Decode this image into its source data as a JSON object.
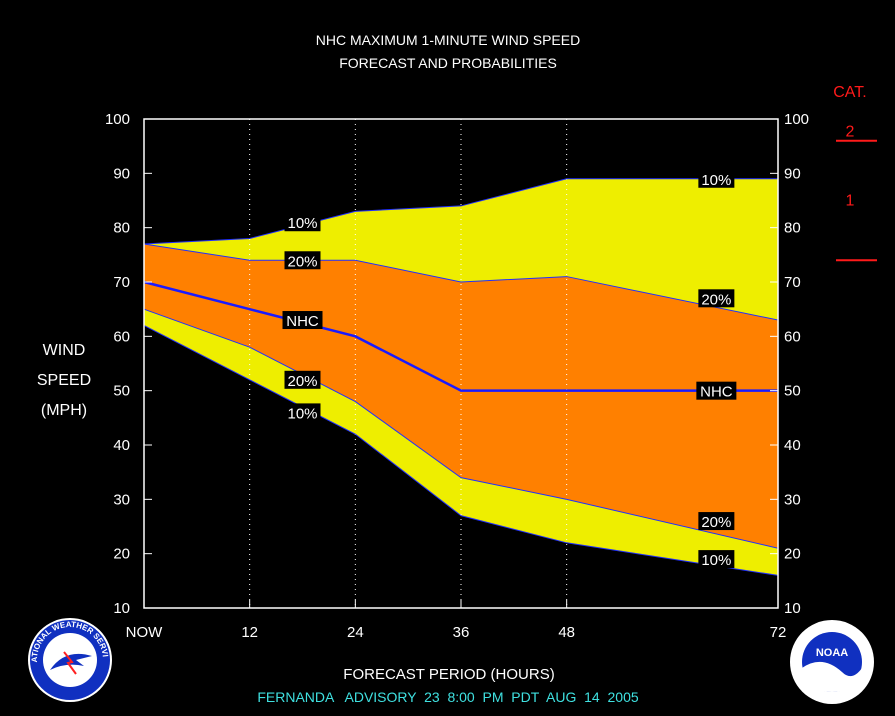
{
  "chart_data": {
    "type": "area",
    "title": "NHC MAXIMUM 1-MINUTE WIND SPEED",
    "subtitle": "FORECAST AND PROBABILITIES",
    "ylabel": [
      "WIND",
      "SPEED",
      "(MPH)"
    ],
    "xlabel": "FORECAST PERIOD (HOURS)",
    "ylim": [
      10,
      100
    ],
    "xlim": [
      0,
      72
    ],
    "yticks": [
      10,
      20,
      30,
      40,
      50,
      60,
      70,
      80,
      90,
      100
    ],
    "xticks": [
      {
        "value": 0,
        "label": "NOW"
      },
      {
        "value": 12,
        "label": "12"
      },
      {
        "value": 24,
        "label": "24"
      },
      {
        "value": 36,
        "label": "36"
      },
      {
        "value": 48,
        "label": "48"
      },
      {
        "value": 72,
        "label": "72"
      }
    ],
    "x": [
      0,
      12,
      24,
      36,
      48,
      72
    ],
    "series": [
      {
        "name": "10%",
        "values": [
          77,
          78,
          83,
          84,
          89,
          89
        ]
      },
      {
        "name": "20%",
        "values": [
          77,
          74,
          74,
          70,
          71,
          63
        ]
      },
      {
        "name": "NHC",
        "values": [
          70,
          65,
          60,
          50,
          50,
          50
        ]
      },
      {
        "name": "20%",
        "values": [
          65,
          58,
          48,
          34,
          30,
          21
        ]
      },
      {
        "name": "10%",
        "values": [
          62,
          52,
          42,
          27,
          22,
          16
        ]
      }
    ],
    "band_labels": [
      {
        "text": "10%",
        "x": 18,
        "y": 81
      },
      {
        "text": "20%",
        "x": 18,
        "y": 74
      },
      {
        "text": "NHC",
        "x": 18,
        "y": 63
      },
      {
        "text": "20%",
        "x": 18,
        "y": 52
      },
      {
        "text": "10%",
        "x": 18,
        "y": 46
      },
      {
        "text": "10%",
        "x": 65,
        "y": 89
      },
      {
        "text": "20%",
        "x": 65,
        "y": 67
      },
      {
        "text": "NHC",
        "x": 65,
        "y": 50
      },
      {
        "text": "20%",
        "x": 65,
        "y": 26
      },
      {
        "text": "10%",
        "x": 65,
        "y": 19
      }
    ],
    "category_scale": {
      "title": "CAT.",
      "bands": [
        {
          "label": "2",
          "threshold": 96
        },
        {
          "label": "1",
          "threshold": 74
        }
      ]
    },
    "colors": {
      "outer_band": "#eeee00",
      "inner_band": "#ff8000",
      "forecast_line": "#1a1aff",
      "category": "#ff1a1a",
      "advisory": "#3fe0e0"
    },
    "grid": "dotted vertical at x ticks"
  },
  "advisory_text": "FERNANDA   ADVISORY  23  8:00  PM  PDT  AUG  14  2005",
  "logos": {
    "left": "NATIONAL WEATHER SERVICE",
    "right": "NOAA"
  }
}
